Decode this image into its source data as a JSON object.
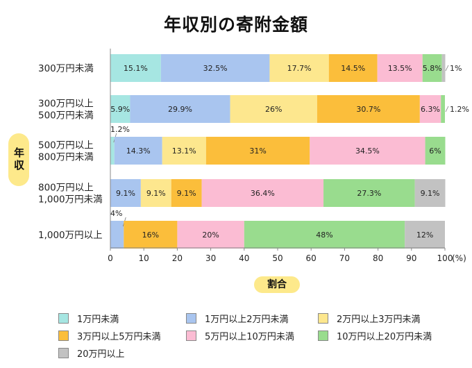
{
  "chart_data": {
    "type": "bar",
    "orientation": "horizontal",
    "stacked": true,
    "title": "年収別の寄附金額",
    "ylabel": "年収",
    "xlabel": "割合",
    "xlim": [
      0,
      100
    ],
    "xticks": [
      "0",
      "10",
      "20",
      "30",
      "40",
      "50",
      "60",
      "70",
      "80",
      "90",
      "100"
    ],
    "xunit": "(%)",
    "categories": [
      [
        "300万円未満"
      ],
      [
        "300万円以上",
        "500万円未満"
      ],
      [
        "500万円以上",
        "800万円未満"
      ],
      [
        "800万円以上",
        "1,000万円未満"
      ],
      [
        "1,000万円以上"
      ]
    ],
    "series": [
      {
        "name": "1万円未満",
        "color": "#a6e6e2",
        "values": [
          15.1,
          5.9,
          1.2,
          0,
          0
        ],
        "labels": [
          "15.1%",
          "5.9%",
          "1.2%",
          "",
          ""
        ]
      },
      {
        "name": "1万円以上2万円未満",
        "color": "#a9c5ef",
        "values": [
          32.5,
          29.9,
          14.3,
          9.1,
          4
        ],
        "labels": [
          "32.5%",
          "29.9%",
          "14.3%",
          "9.1%",
          "4%"
        ]
      },
      {
        "name": "2万円以上3万円未満",
        "color": "#fde78e",
        "values": [
          17.7,
          26,
          13.1,
          9.1,
          0
        ],
        "labels": [
          "17.7%",
          "26%",
          "13.1%",
          "9.1%",
          ""
        ]
      },
      {
        "name": "3万円以上5万円未満",
        "color": "#fbbe3b",
        "values": [
          14.5,
          30.7,
          31,
          9.1,
          16
        ],
        "labels": [
          "14.5%",
          "30.7%",
          "31%",
          "9.1%",
          "16%"
        ]
      },
      {
        "name": "5万円以上10万円未満",
        "color": "#fbbcd3",
        "values": [
          13.5,
          6.3,
          34.5,
          36.4,
          20
        ],
        "labels": [
          "13.5%",
          "6.3%",
          "34.5%",
          "36.4%",
          "20%"
        ]
      },
      {
        "name": "10万円以上20万円未満",
        "color": "#99dc8e",
        "values": [
          5.8,
          1.2,
          6,
          27.3,
          48
        ],
        "labels": [
          "5.8%",
          "1.2%",
          "6%",
          "27.3%",
          "48%"
        ]
      },
      {
        "name": "20万円以上",
        "color": "#c2c2c2",
        "values": [
          1,
          0,
          0,
          9.1,
          12
        ],
        "labels": [
          "1%",
          "",
          "",
          "9.1%",
          "12%"
        ]
      }
    ]
  }
}
